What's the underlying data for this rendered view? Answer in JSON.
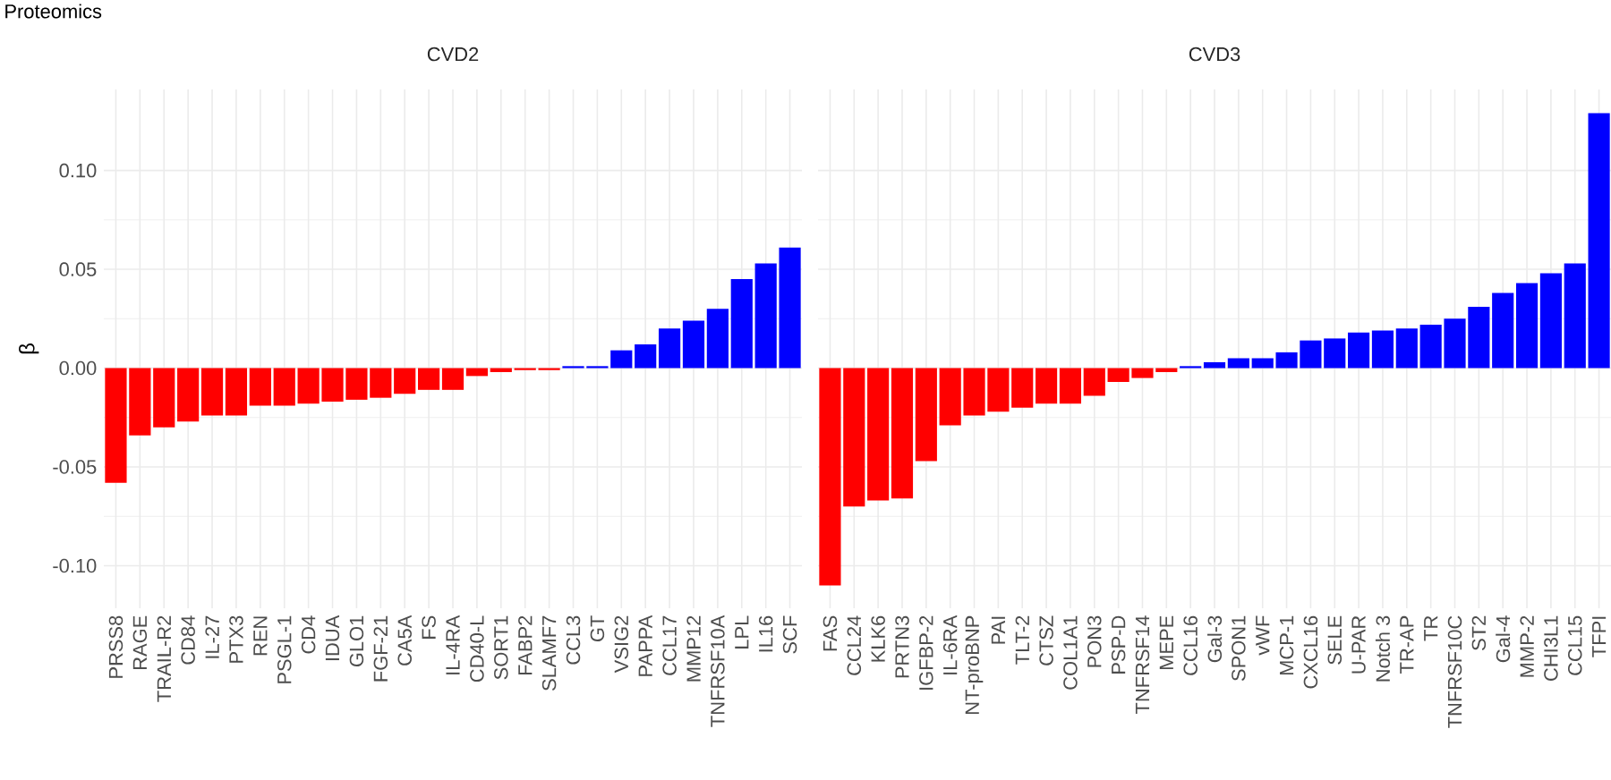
{
  "chart_data": [
    {
      "type": "bar",
      "title": "Proteomics",
      "subtitle": "CVD2",
      "ylabel": "β",
      "grid": true,
      "categories": [
        "PRSS8",
        "RAGE",
        "TRAIL-R2",
        "CD84",
        "IL-27",
        "PTX3",
        "REN",
        "PSGL-1",
        "CD4",
        "IDUA",
        "GLO1",
        "FGF-21",
        "CA5A",
        "FS",
        "IL-4RA",
        "CD40-L",
        "SORT1",
        "FABP2",
        "SLAMF7",
        "CCL3",
        "GT",
        "VSIG2",
        "PAPPA",
        "CCL17",
        "MMP12",
        "TNFRSF10A",
        "LPL",
        "IL16",
        "SCF"
      ],
      "values": [
        -0.058,
        -0.034,
        -0.03,
        -0.027,
        -0.024,
        -0.024,
        -0.019,
        -0.019,
        -0.018,
        -0.017,
        -0.016,
        -0.015,
        -0.013,
        -0.011,
        -0.011,
        -0.004,
        -0.002,
        -0.001,
        -0.001,
        0.001,
        0.001,
        0.009,
        0.012,
        0.02,
        0.024,
        0.03,
        0.045,
        0.053,
        0.061
      ],
      "colors": [
        "#ff0000",
        "#ff0000",
        "#ff0000",
        "#ff0000",
        "#ff0000",
        "#ff0000",
        "#ff0000",
        "#ff0000",
        "#ff0000",
        "#ff0000",
        "#ff0000",
        "#ff0000",
        "#ff0000",
        "#ff0000",
        "#ff0000",
        "#ff0000",
        "#ff0000",
        "#ff0000",
        "#ff0000",
        "#0000ff",
        "#0000ff",
        "#0000ff",
        "#0000ff",
        "#0000ff",
        "#0000ff",
        "#0000ff",
        "#0000ff",
        "#0000ff",
        "#0000ff"
      ],
      "ylim": [
        -0.1215,
        0.141
      ],
      "yticks": [
        {
          "value": -0.1,
          "label": "-0.10"
        },
        {
          "value": -0.05,
          "label": "-0.05"
        },
        {
          "value": 0,
          "label": "0.00"
        },
        {
          "value": 0.05,
          "label": "0.05"
        },
        {
          "value": 0.1,
          "label": "0.10"
        }
      ]
    },
    {
      "type": "bar",
      "subtitle": "CVD3",
      "grid": true,
      "tick_labels": "x",
      "categories": [
        "FAS",
        "CCL24",
        "KLK6",
        "PRTN3",
        "IGFBP-2",
        "IL-6RA",
        "NT-proBNP",
        "PAI",
        "TLT-2",
        "CTSZ",
        "COL1A1",
        "PON3",
        "PSP-D",
        "TNFRSF14",
        "MEPE",
        "CCL16",
        "Gal-3",
        "SPON1",
        "vWF",
        "MCP-1",
        "CXCL16",
        "SELE",
        "U-PAR",
        "Notch 3",
        "TR-AP",
        "TR",
        "TNFRSF10C",
        "ST2",
        "Gal-4",
        "MMP-2",
        "CHI3L1",
        "CCL15",
        "TFPI"
      ],
      "values": [
        -0.11,
        -0.07,
        -0.067,
        -0.066,
        -0.047,
        -0.029,
        -0.024,
        -0.022,
        -0.02,
        -0.018,
        -0.018,
        -0.014,
        -0.007,
        -0.005,
        -0.002,
        0.001,
        0.003,
        0.005,
        0.005,
        0.008,
        0.014,
        0.015,
        0.018,
        0.019,
        0.02,
        0.022,
        0.025,
        0.031,
        0.038,
        0.043,
        0.048,
        0.053,
        0.129
      ],
      "colors": [
        "#ff0000",
        "#ff0000",
        "#ff0000",
        "#ff0000",
        "#ff0000",
        "#ff0000",
        "#ff0000",
        "#ff0000",
        "#ff0000",
        "#ff0000",
        "#ff0000",
        "#ff0000",
        "#ff0000",
        "#ff0000",
        "#ff0000",
        "#0000ff",
        "#0000ff",
        "#0000ff",
        "#0000ff",
        "#0000ff",
        "#0000ff",
        "#0000ff",
        "#0000ff",
        "#0000ff",
        "#0000ff",
        "#0000ff",
        "#0000ff",
        "#0000ff",
        "#0000ff",
        "#0000ff",
        "#0000ff",
        "#0000ff",
        "#0000ff"
      ],
      "ylim": [
        -0.1215,
        0.141
      ],
      "yticks": [
        {
          "value": -0.1,
          "label": null
        },
        {
          "value": -0.05,
          "label": null
        },
        {
          "value": 0,
          "label": null
        },
        {
          "value": 0.05,
          "label": null
        },
        {
          "value": 0.1,
          "label": null
        }
      ]
    }
  ]
}
